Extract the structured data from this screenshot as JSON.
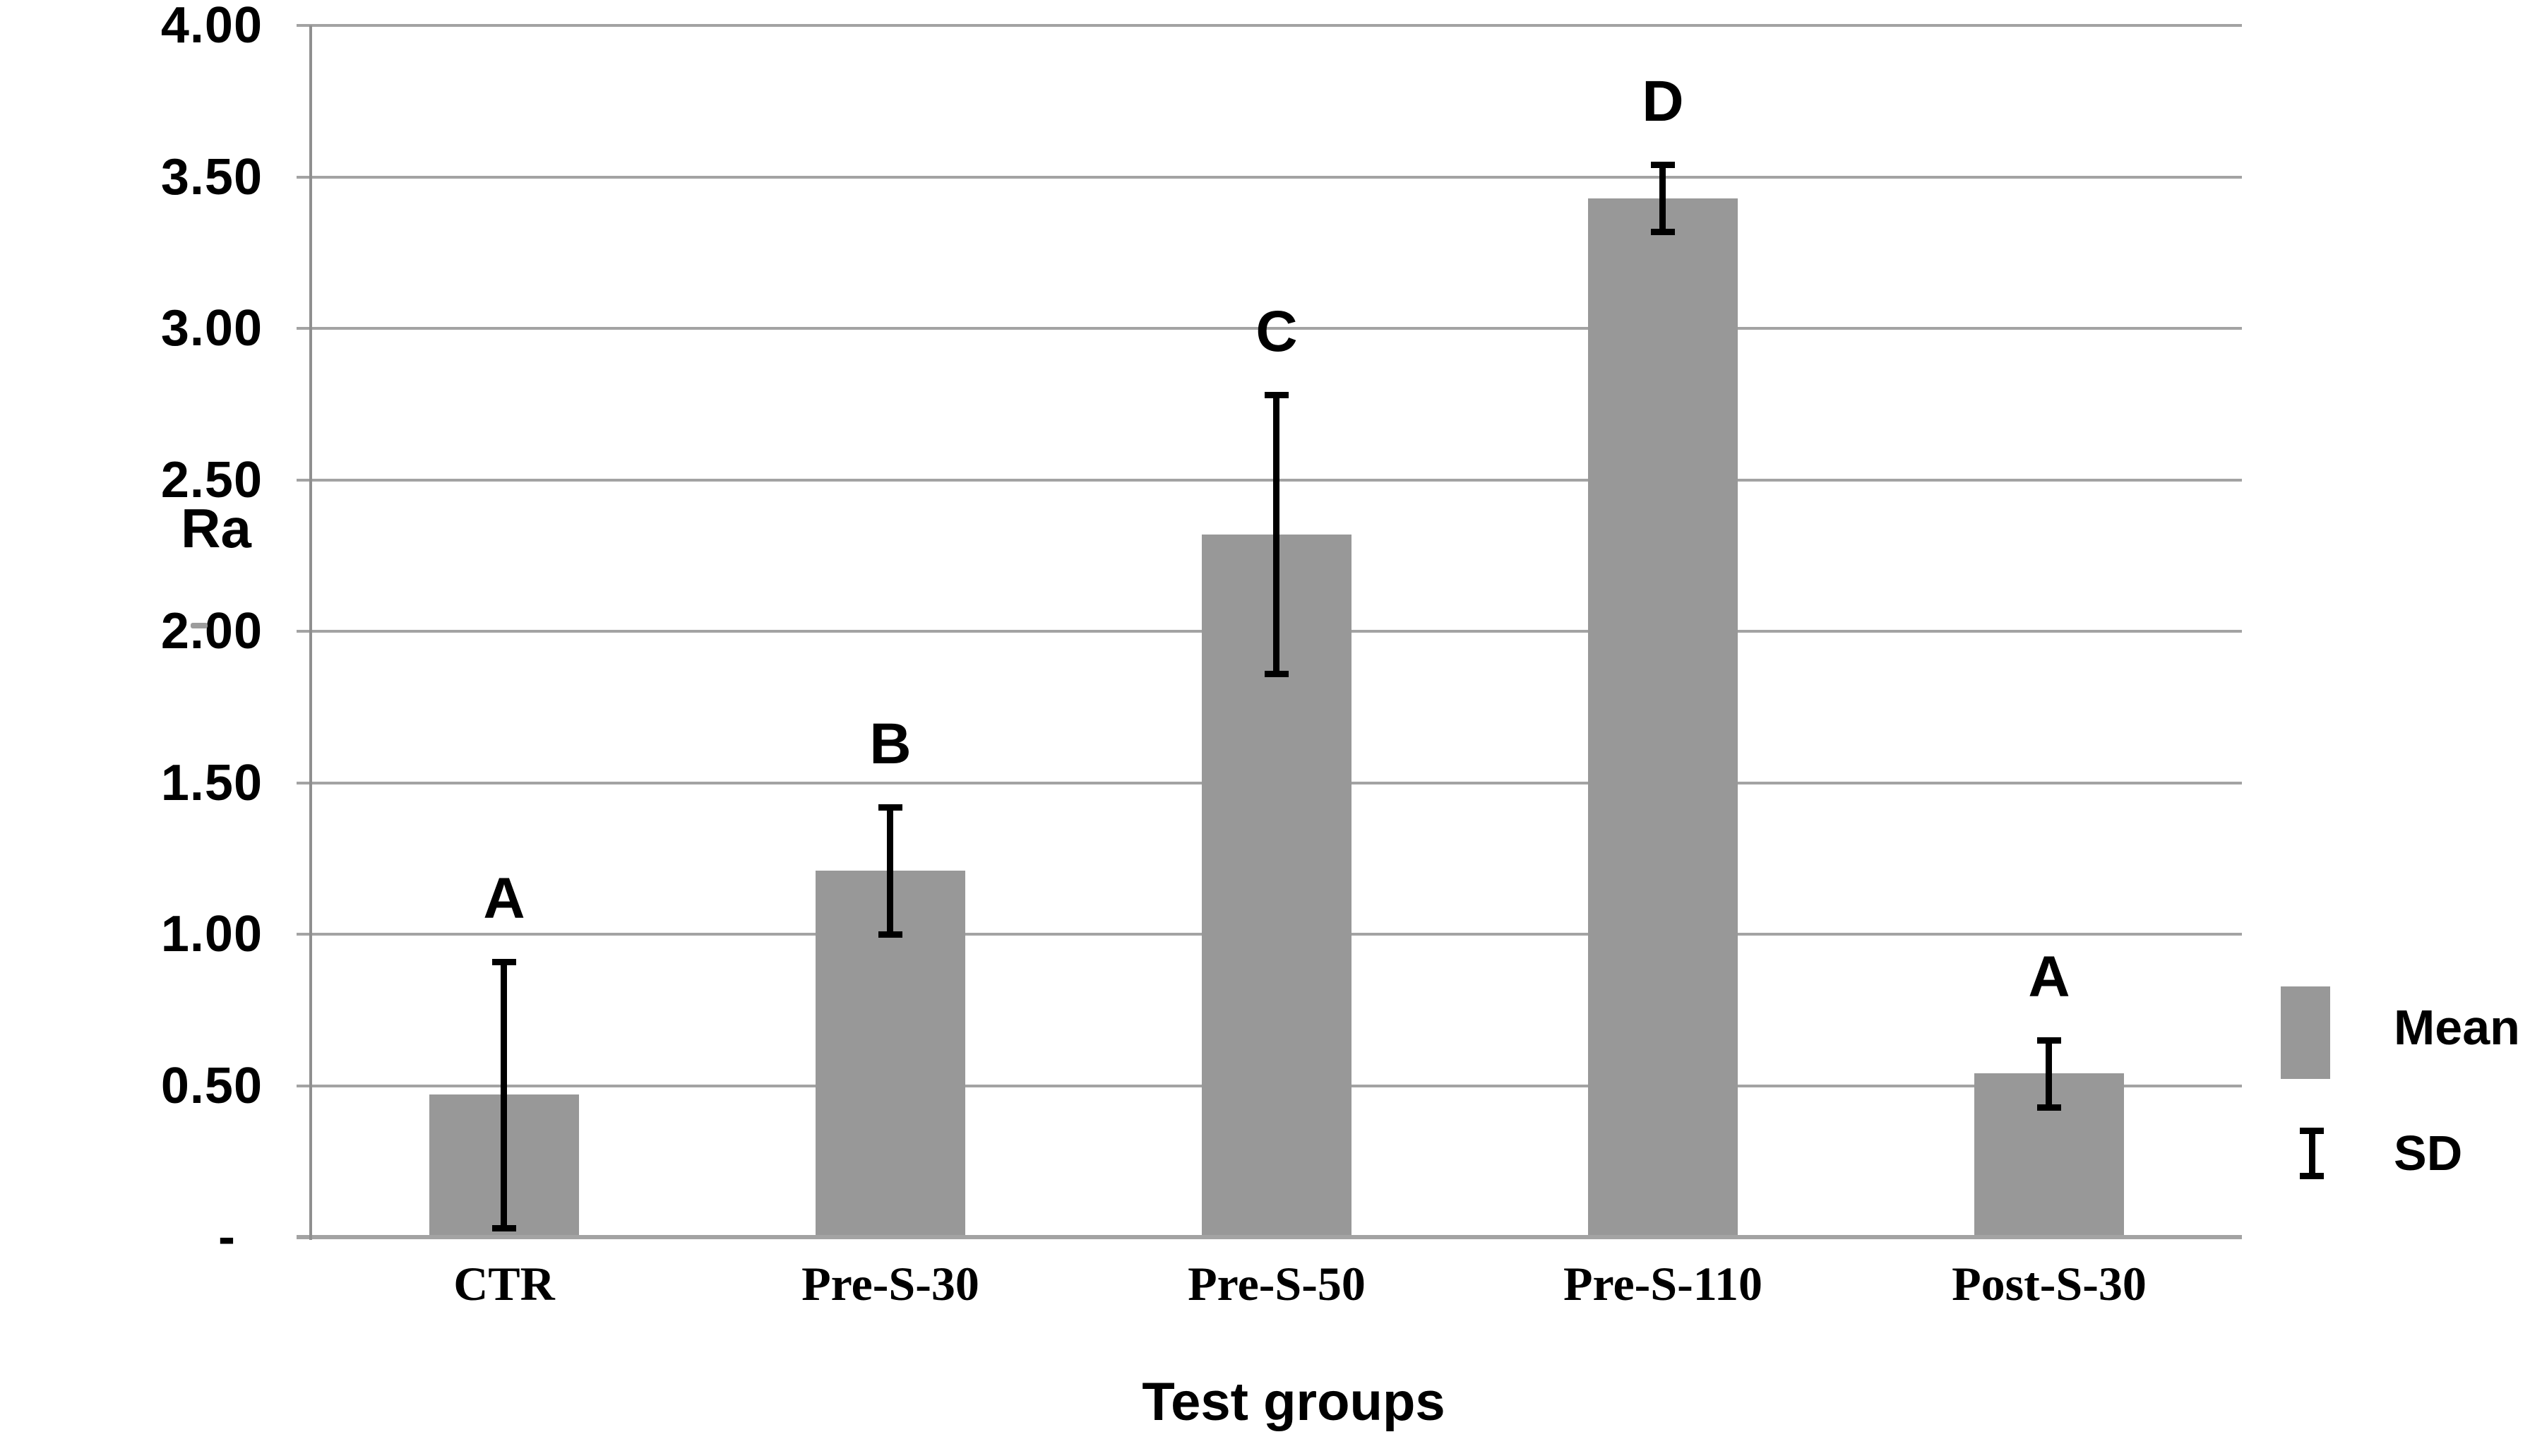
{
  "chart_data": {
    "type": "bar",
    "title": "",
    "ylabel": "Ra",
    "xlabel": "Test groups",
    "categories": [
      "CTR",
      "Pre-S-30",
      "Pre-S-50",
      "Pre-S-110",
      "Post-S-30"
    ],
    "series": [
      {
        "name": "Mean",
        "values": [
          0.47,
          1.21,
          2.32,
          3.43,
          0.54
        ]
      }
    ],
    "sd": [
      0.44,
      0.21,
      0.46,
      0.11,
      0.11
    ],
    "significance_letters": [
      "A",
      "B",
      "C",
      "D",
      "A"
    ],
    "ylim": [
      0,
      4
    ],
    "ytick_step": 0.5,
    "ytick_labels": [
      "-",
      "0.50",
      "1.00",
      "1.50",
      "2.00",
      "2.50",
      "3.00",
      "3.50",
      "4.00"
    ],
    "grid": true,
    "legend": {
      "position": "right",
      "items": [
        {
          "marker": "bar-swatch",
          "label": "Mean"
        },
        {
          "marker": "error-bar",
          "label": "SD"
        }
      ]
    },
    "colors": {
      "bar": "#989898",
      "gridline": "#a3a3a3",
      "baseline": "#a3a3a3",
      "axis_line": "#8f8f8f",
      "error_bar": "#000000",
      "text": "#000000"
    }
  }
}
